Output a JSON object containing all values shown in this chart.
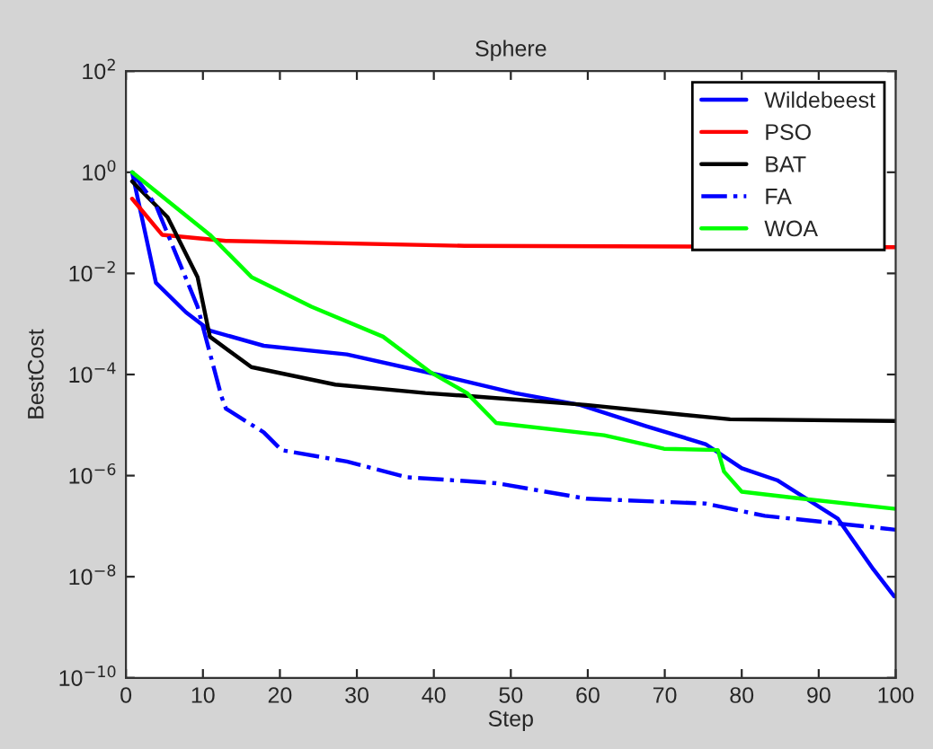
{
  "chart_data": {
    "type": "line",
    "title": "Sphere",
    "xlabel": "Step",
    "ylabel": "BestCost",
    "log": "y",
    "xlim": [
      0,
      100
    ],
    "xticks": [
      0,
      10,
      20,
      30,
      40,
      50,
      60,
      70,
      80,
      90,
      100
    ],
    "ylim": [
      1e-10,
      100
    ],
    "yticks": [
      {
        "value": 1e-10,
        "label": "10$^{−10}$"
      },
      {
        "value": 1e-08,
        "label": "10$^{−8}$"
      },
      {
        "value": 1e-06,
        "label": "10$^{−6}$"
      },
      {
        "value": 0.0001,
        "label": "10$^{−4}$"
      },
      {
        "value": 0.01,
        "label": "10$^{−2}$"
      },
      {
        "value": 1,
        "label": "10$^{0}$"
      },
      {
        "value": 100,
        "label": "10$^{2}$"
      }
    ],
    "grid": false,
    "legend": "top right",
    "marker": "none",
    "series": [
      {
        "name": "Wildebeest",
        "color": "#0000ff",
        "line_style": "solid",
        "x": [
          0.8,
          3.9,
          7.8,
          10.9,
          17.9,
          28.7,
          40.4,
          50.5,
          59,
          67.6,
          75.3,
          80,
          84.6,
          92.5,
          97.1,
          99.8
        ],
        "values": [
          1,
          0.0065,
          0.0017,
          0.00074,
          0.00037,
          0.00025,
          0.0001,
          4.3e-05,
          2.5e-05,
          9.5e-06,
          4.2e-06,
          1.4e-06,
          8.1e-07,
          1.4e-07,
          1.4e-08,
          4.1e-09
        ]
      },
      {
        "name": "PSO",
        "color": "#ff0000",
        "line_style": "solid",
        "x": [
          0.8,
          4.7,
          13,
          44,
          100
        ],
        "values": [
          0.3,
          0.058,
          0.044,
          0.035,
          0.033
        ]
      },
      {
        "name": "BAT",
        "color": "#000000",
        "line_style": "solid",
        "x": [
          0.8,
          5.4,
          9.3,
          10.9,
          16.3,
          27.2,
          38.9,
          45,
          59.8,
          72.3,
          78.5,
          100
        ],
        "values": [
          0.66,
          0.13,
          0.0085,
          0.00056,
          0.00014,
          6.3e-05,
          4.3e-05,
          3.7e-05,
          2.5e-05,
          1.6e-05,
          1.3e-05,
          1.2e-05
        ]
      },
      {
        "name": "FA",
        "color": "#0000ff",
        "line_style": "dashdot",
        "x": [
          0.8,
          3.9,
          9.3,
          12.4,
          13,
          17.9,
          20.2,
          28.7,
          36.5,
          48.1,
          59.8,
          75.3,
          83,
          90.8,
          100
        ],
        "values": [
          1,
          0.22,
          0.0022,
          3.7e-05,
          2.1e-05,
          7.2e-06,
          3.2e-06,
          1.9e-06,
          9.3e-07,
          7.1e-07,
          3.5e-07,
          2.8e-07,
          1.6e-07,
          1.2e-07,
          8.5e-08
        ]
      },
      {
        "name": "WOA",
        "color": "#00ff00",
        "line_style": "solid",
        "x": [
          0.8,
          10.9,
          16.3,
          24.1,
          33.4,
          39.6,
          44.3,
          45.8,
          48.1,
          62.1,
          69.9,
          76.9,
          77.7,
          80,
          87,
          100
        ],
        "values": [
          1,
          0.058,
          0.0085,
          0.0022,
          0.00056,
          0.00011,
          4.3e-05,
          2.5e-05,
          1.1e-05,
          6.3e-06,
          3.4e-06,
          3.2e-06,
          1.2e-06,
          4.8e-07,
          3.6e-07,
          2.2e-07
        ]
      }
    ]
  }
}
